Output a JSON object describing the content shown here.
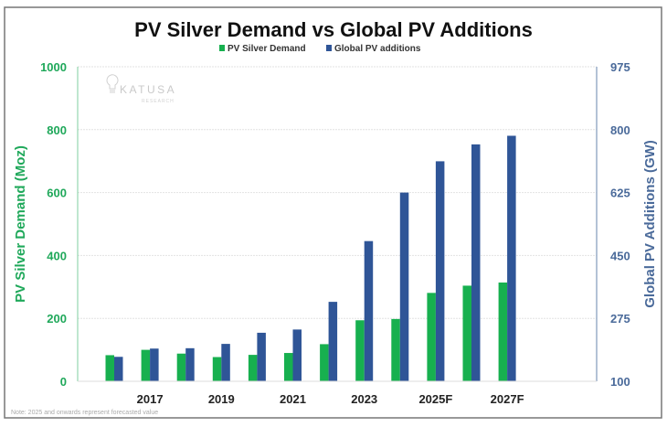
{
  "chart_data": {
    "type": "bar",
    "title": "PV Silver Demand vs Global PV Additions",
    "categories": [
      "",
      "2017",
      "",
      "2019",
      "",
      "2021",
      "",
      "2023",
      "",
      "2025F",
      "",
      "2027F"
    ],
    "series": [
      {
        "name": "PV Silver Demand",
        "axis": "left",
        "color": "#17b04f",
        "values": [
          83,
          100,
          88,
          77,
          84,
          90,
          118,
          194,
          198,
          281,
          304,
          314
        ]
      },
      {
        "name": "Global PV additions",
        "axis": "right",
        "color": "#2f5597",
        "values": [
          168,
          191,
          192,
          204,
          235,
          244,
          321,
          490,
          625,
          712,
          759,
          783
        ]
      }
    ],
    "ylabel": "PV Silver Demand (Moz)",
    "ylim": [
      0,
      1000
    ],
    "yticks": [
      "0",
      "200",
      "400",
      "600",
      "800",
      "1000"
    ],
    "y2label": "Global PV Additions (GW)",
    "y2lim": [
      100,
      975
    ],
    "y2ticks": [
      "100",
      "275",
      "450",
      "625",
      "800",
      "975"
    ],
    "grid": true,
    "legend_position": "top-center",
    "note": "Note: 2025 and onwards represent forecasted value",
    "watermark": {
      "name": "KATUSA",
      "sub": "RESEARCH"
    },
    "colors": {
      "left_axis": "#1fa85a",
      "right_axis": "#4a6a9a"
    }
  }
}
